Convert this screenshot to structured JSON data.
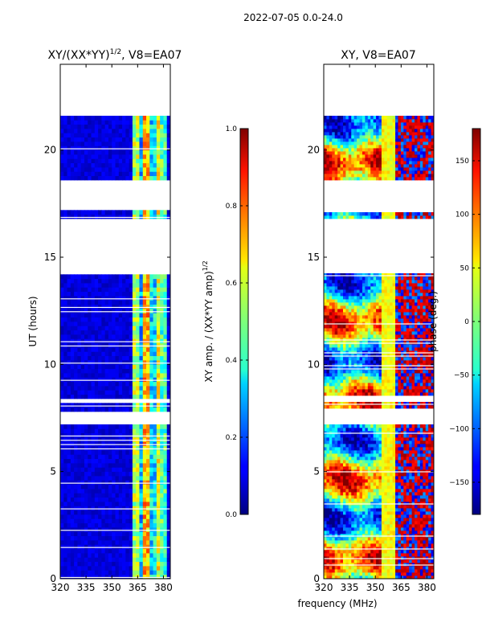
{
  "suptitle": "2022-07-05 0.0-24.0",
  "shared": {
    "xlabel": "frequency (MHz)",
    "ylabel": "UT (hours)"
  },
  "chart_data": [
    {
      "type": "heatmap",
      "id": "amp",
      "title": "XY/(XX*YY)",
      "title_sup": "1/2",
      "title_suffix": ", V8=EA07",
      "xlabel": "frequency (MHz)",
      "ylabel": "UT (hours)",
      "xlim": [
        320,
        384
      ],
      "ylim": [
        0,
        24
      ],
      "xticks": [
        320,
        335,
        350,
        365,
        380
      ],
      "yticks": [
        0,
        5,
        10,
        15,
        20
      ],
      "colorbar": {
        "label": "XY amp. / (XX*YY amp)",
        "label_sup": "1/2",
        "range": [
          0.0,
          1.0
        ],
        "ticks": [
          0.0,
          0.2,
          0.4,
          0.6,
          0.8,
          1.0
        ],
        "tick_labels": [
          "0.0",
          "0.2",
          "0.4",
          "0.6",
          "0.8",
          "1.0"
        ],
        "colormap": "jet"
      },
      "gaps_hours": [
        [
          7.2,
          7.9
        ],
        [
          8.3,
          8.5
        ],
        [
          14.3,
          16.8
        ],
        [
          17.15,
          18.6
        ],
        [
          21.6,
          24.0
        ]
      ],
      "band_hours": [
        [
          20.2,
          24.0
        ]
      ]
    },
    {
      "type": "heatmap",
      "id": "phase",
      "title": "XY, V8=EA07",
      "xlabel": "frequency (MHz)",
      "ylabel": "UT (hours)",
      "xlim": [
        320,
        384
      ],
      "ylim": [
        0,
        24
      ],
      "xticks": [
        320,
        335,
        350,
        365,
        380
      ],
      "yticks": [
        0,
        5,
        10,
        15,
        20
      ],
      "colorbar": {
        "label": "phase (deg.)",
        "range": [
          -180,
          180
        ],
        "ticks": [
          -150,
          -100,
          -50,
          0,
          50,
          100,
          150
        ],
        "tick_labels": [
          "−150",
          "−100",
          "−50",
          "0",
          "50",
          "100",
          "150"
        ],
        "colormap": "jet"
      },
      "gaps_hours": [
        [
          7.2,
          7.9
        ],
        [
          8.3,
          8.5
        ],
        [
          14.3,
          16.8
        ],
        [
          17.15,
          18.6
        ],
        [
          21.6,
          24.0
        ]
      ]
    }
  ]
}
